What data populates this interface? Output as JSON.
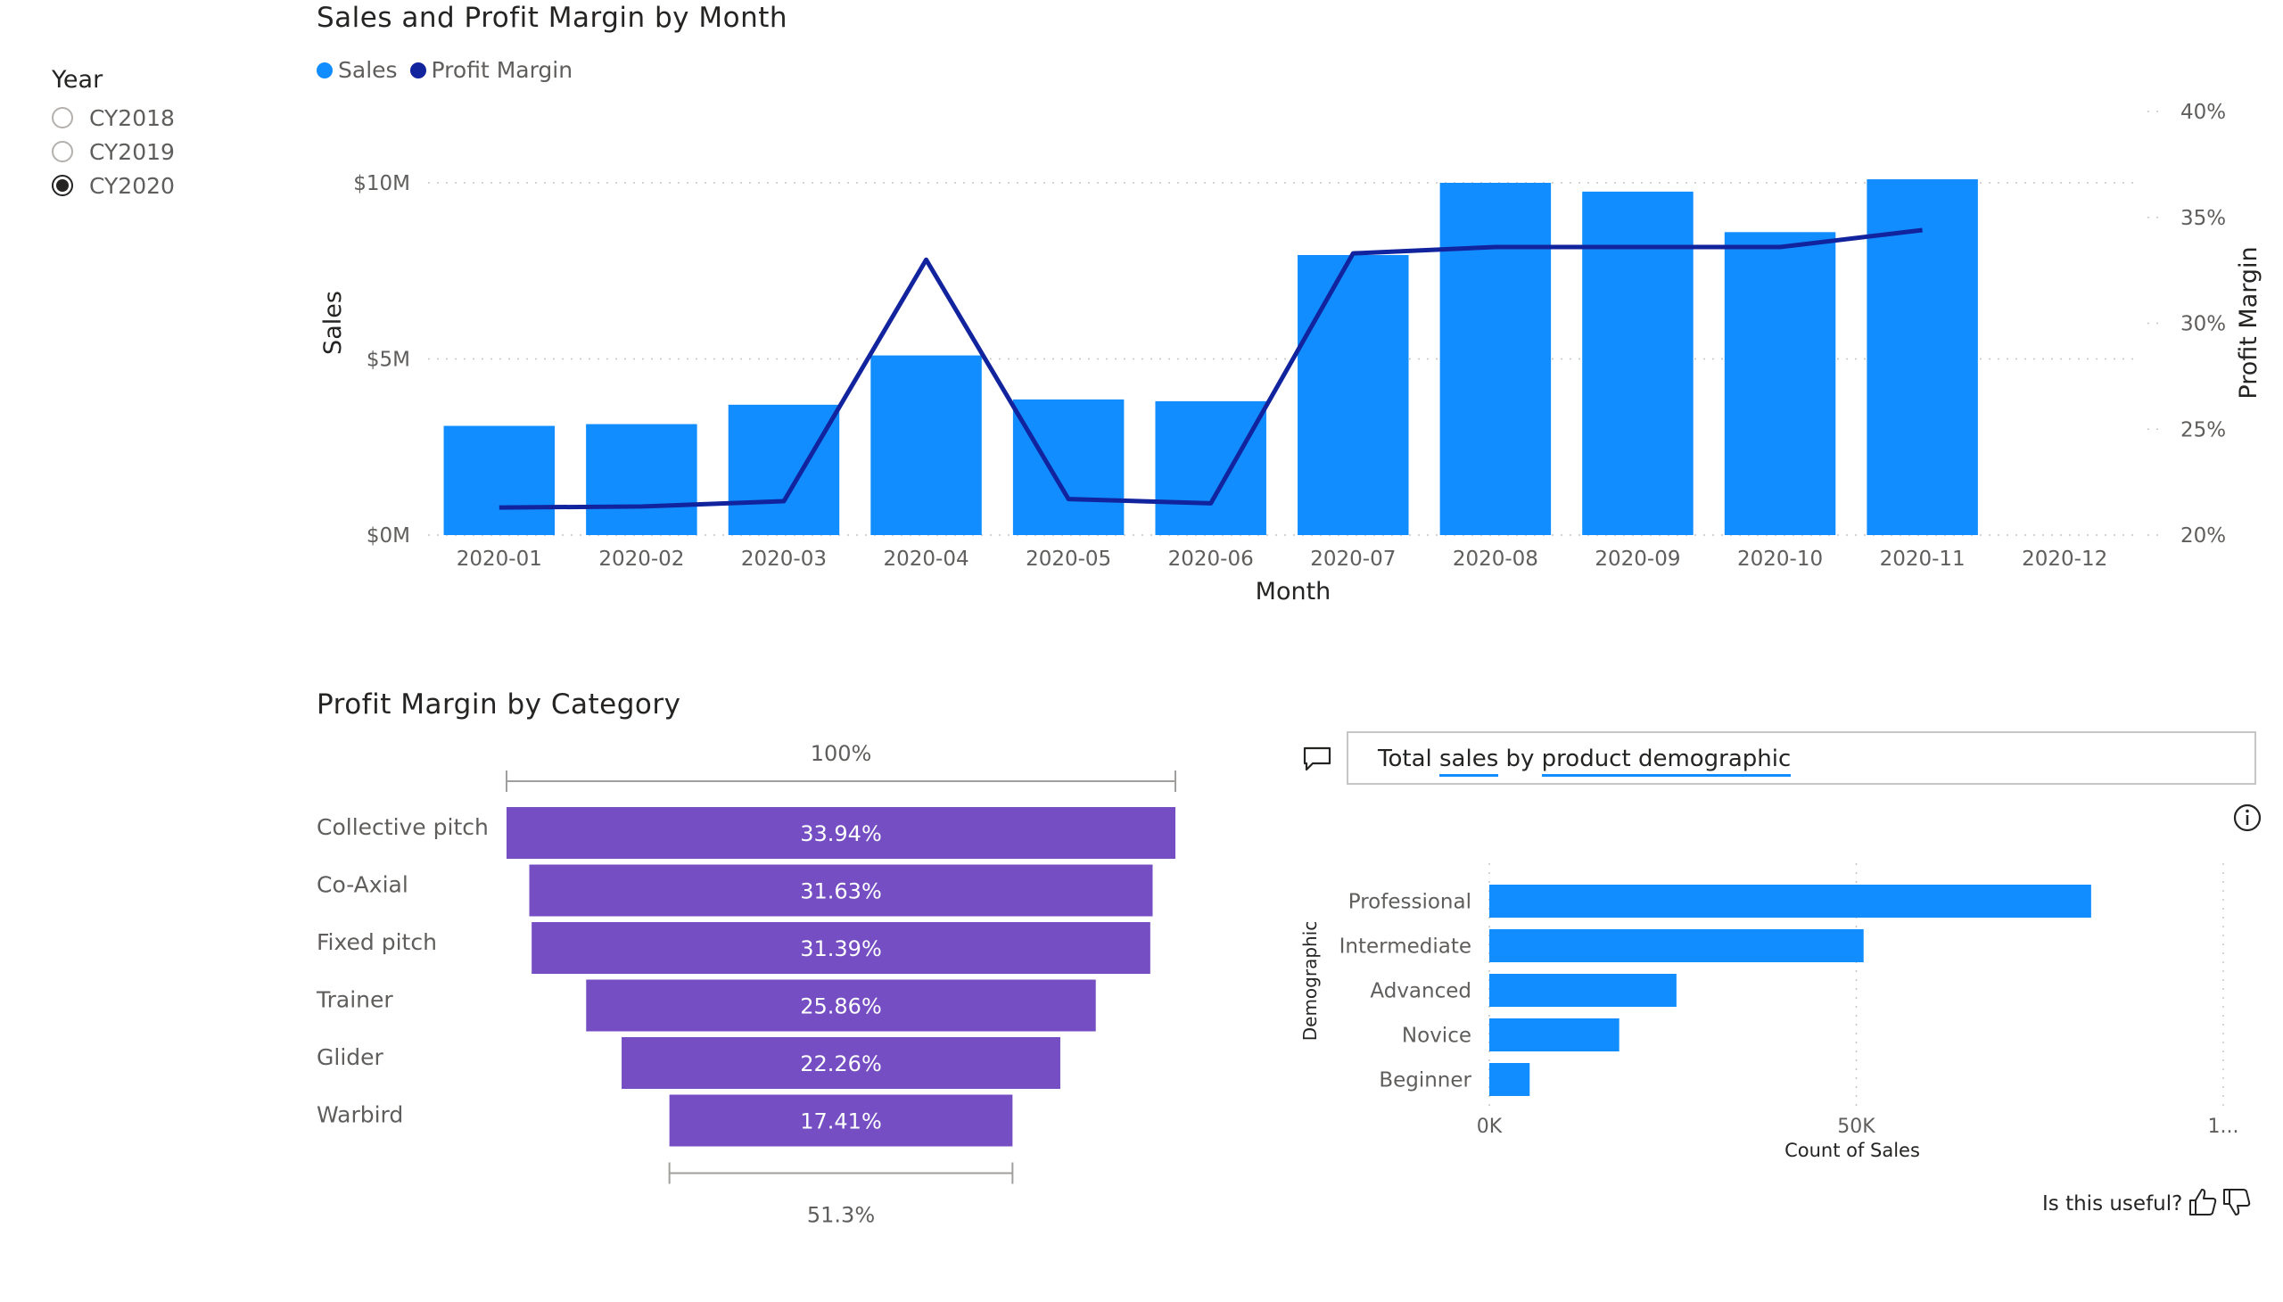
{
  "slicer": {
    "title": "Year",
    "options": [
      {
        "label": "CY2018",
        "selected": false
      },
      {
        "label": "CY2019",
        "selected": false
      },
      {
        "label": "CY2020",
        "selected": true
      }
    ]
  },
  "colors": {
    "sales": "#118dff",
    "profit_margin": "#12239e",
    "funnel": "#744ec2",
    "qna_bar": "#118dff"
  },
  "chart_data": [
    {
      "type": "bar",
      "title": "Sales and Profit Margin by Month",
      "legend": {
        "placement": "top-left",
        "entries": [
          "Sales",
          "Profit Margin"
        ]
      },
      "xlabel": "Month",
      "ylabel": "Sales",
      "y2label": "Profit Margin",
      "categories": [
        "2020-01",
        "2020-02",
        "2020-03",
        "2020-04",
        "2020-05",
        "2020-06",
        "2020-07",
        "2020-08",
        "2020-09",
        "2020-10",
        "2020-11",
        "2020-12"
      ],
      "y_ticks": [
        "$0M",
        "$5M",
        "$10M"
      ],
      "ylim": [
        0,
        10000000
      ],
      "y2_ticks": [
        "20%",
        "25%",
        "30%",
        "35%",
        "40%"
      ],
      "y2lim": [
        20,
        40
      ],
      "grid": true,
      "series": [
        {
          "name": "Sales",
          "type": "bar",
          "values": [
            3100000,
            3150000,
            3700000,
            5100000,
            3850000,
            3800000,
            7950000,
            10000000,
            9750000,
            8600000,
            10100000,
            null
          ]
        },
        {
          "name": "Profit Margin",
          "type": "line",
          "values": [
            21.3,
            21.35,
            21.6,
            33.0,
            21.7,
            21.5,
            33.3,
            33.6,
            33.6,
            33.6,
            34.4,
            null
          ]
        }
      ]
    },
    {
      "type": "funnel",
      "title": "Profit Margin by Category",
      "top_label": "100%",
      "bottom_label": "51.3%",
      "categories": [
        "Collective pitch",
        "Co-Axial",
        "Fixed pitch",
        "Trainer",
        "Glider",
        "Warbird"
      ],
      "values": [
        33.94,
        31.63,
        31.39,
        25.86,
        22.26,
        17.41
      ],
      "value_labels": [
        "33.94%",
        "31.63%",
        "31.39%",
        "25.86%",
        "22.26%",
        "17.41%"
      ]
    },
    {
      "type": "bar",
      "orientation": "horizontal",
      "ylabel": "Demographic",
      "xlabel": "Count of Sales",
      "categories": [
        "Professional",
        "Intermediate",
        "Advanced",
        "Novice",
        "Beginner"
      ],
      "values": [
        82000,
        51000,
        25500,
        17700,
        5500
      ],
      "x_ticks": [
        "0K",
        "50K",
        "1..."
      ],
      "xlim": [
        0,
        100000
      ],
      "grid": true
    }
  ],
  "qna": {
    "prefix": "Total ",
    "term1": "sales",
    "mid": " by ",
    "term2": "product demographic",
    "comment_icon": "comment-icon",
    "info_icon": "info-icon"
  },
  "feedback": {
    "label": "Is this useful?",
    "like_icon": "thumbs-up-icon",
    "dislike_icon": "thumbs-down-icon"
  }
}
